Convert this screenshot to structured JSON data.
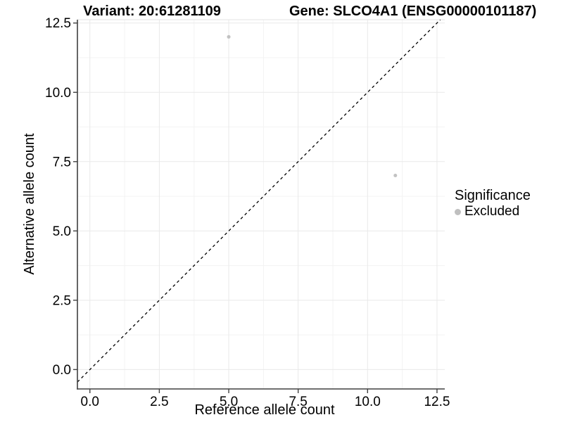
{
  "titles": {
    "variant": "Variant: 20:61281109",
    "gene": "Gene: SLCO4A1 (ENSG00000101187)"
  },
  "chart_data": {
    "type": "scatter",
    "title": "Variant: 20:61281109    Gene: SLCO4A1 (ENSG00000101187)",
    "xlabel": "Reference allele count",
    "ylabel": "Alternative allele count",
    "xlim": [
      -0.45,
      12.78
    ],
    "ylim": [
      -0.7,
      12.62
    ],
    "x_ticks": {
      "values": [
        0,
        2.5,
        5,
        7.5,
        10,
        12.5
      ],
      "labels": [
        "0.0",
        "2.5",
        "5.0",
        "7.5",
        "10.0",
        "12.5"
      ]
    },
    "y_ticks": {
      "values": [
        0,
        2.5,
        5,
        7.5,
        10,
        12.5
      ],
      "labels": [
        "0.0",
        "2.5",
        "5.0",
        "7.5",
        "10.0",
        "12.5"
      ]
    },
    "minor_ticks": [
      1.25,
      3.75,
      6.25,
      8.75,
      11.25
    ],
    "grid": "major+minor",
    "series": [
      {
        "name": "Excluded",
        "color": "#c2c2c2",
        "points": [
          {
            "x": 5,
            "y": 12
          },
          {
            "x": 11,
            "y": 7
          }
        ]
      }
    ],
    "reference_line": {
      "type": "identity y=x",
      "style": "dashed",
      "color": "#000000"
    },
    "legend": {
      "position": "right",
      "title": "Significance",
      "items": [
        {
          "label": "Excluded",
          "color": "#bfbfbf"
        }
      ]
    },
    "colors": {
      "grid_major": "#e9e9e9",
      "grid_minor": "#f3f3f3",
      "panel_top_border": "#e3e3e3",
      "axis_line": "#404040",
      "tick_mark": "#404040",
      "tick_label": "#000000",
      "point_fill": "#c2c2c2",
      "background": "#ffffff"
    }
  }
}
